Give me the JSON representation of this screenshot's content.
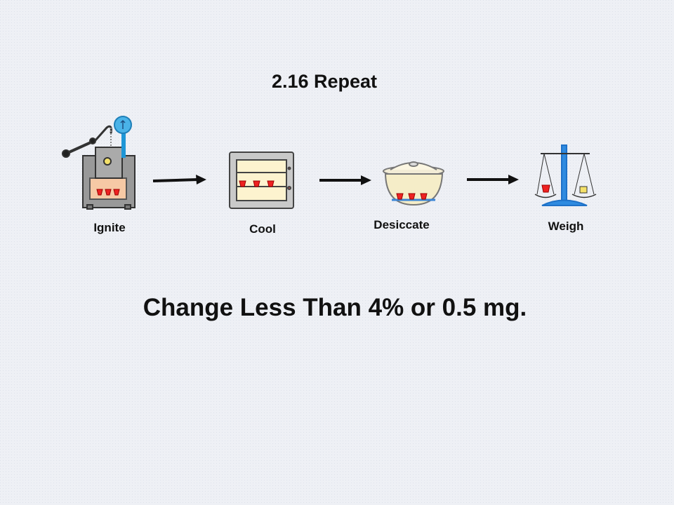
{
  "title": "2.16 Repeat",
  "steps": [
    {
      "label": "Ignite"
    },
    {
      "label": "Cool"
    },
    {
      "label": "Desiccate"
    },
    {
      "label": "Weigh"
    }
  ],
  "note": "Change Less Than 4% or 0.5 mg."
}
